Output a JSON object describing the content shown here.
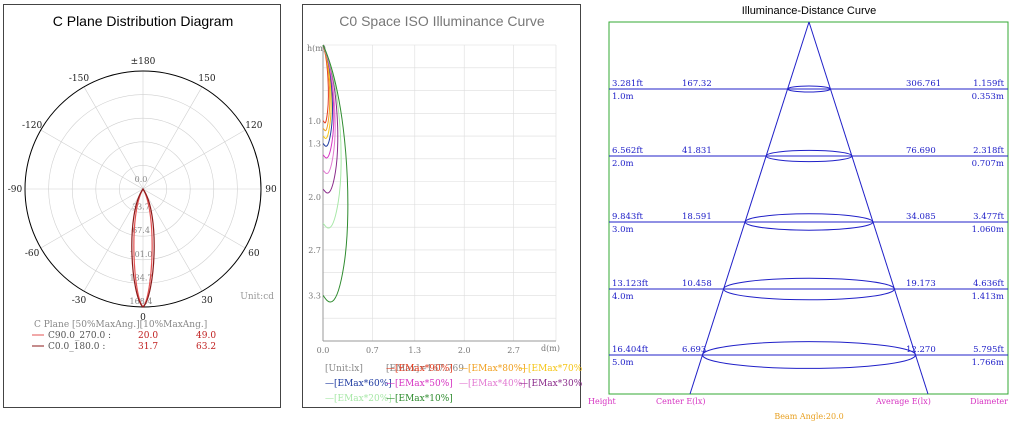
{
  "polar": {
    "title": "C Plane Distribution Diagram",
    "unit_label": "Unit:cd",
    "angle_labels": [
      "±180",
      "150",
      "120",
      "90",
      "60",
      "30",
      "0",
      "-30",
      "-60",
      "-90",
      "-120",
      "-150"
    ],
    "radial_labels": [
      "0.0",
      "33.7",
      "67.4",
      "101.0",
      "134.7",
      "168.4"
    ],
    "legend_header": "C Plane   [50%MaxAng.][10%MaxAng.]",
    "legend_rows": [
      {
        "name": "C90.0_270.0 :",
        "v50": "20.0",
        "v10": "49.0",
        "color": "#e35353"
      },
      {
        "name": "C0.0_180.0 :",
        "v50": "31.7",
        "v10": "63.2",
        "color": "#8b1a1a"
      }
    ]
  },
  "iso": {
    "title": "C0 Space ISO Illuminance Curve",
    "y_axis_label": "h(m)",
    "x_axis_label": "d(m)",
    "y_ticks": [
      "1.0",
      "1.3",
      "2.0",
      "2.7",
      "3.3"
    ],
    "x_ticks": [
      "0.0",
      "0.7",
      "1.3",
      "2.0",
      "2.7"
    ],
    "unit": "[Unit:lx]",
    "emax": "[EMax]=167.769",
    "legend": [
      {
        "label": "[EMax*90%]",
        "color": "#e33b1e"
      },
      {
        "label": "[EMax*80%]",
        "color": "#f0a020"
      },
      {
        "label": "[EMax*70%]",
        "color": "#f5c518"
      },
      {
        "label": "[EMax*60%]",
        "color": "#1e3aa0"
      },
      {
        "label": "[EMax*50%]",
        "color": "#d633c2"
      },
      {
        "label": "[EMax*40%]",
        "color": "#e27ad2"
      },
      {
        "label": "[EMax*30%]",
        "color": "#8a2a8a"
      },
      {
        "label": "[EMax*20%]",
        "color": "#a8e8a8"
      },
      {
        "label": "[EMax*10%]",
        "color": "#2e8b2e"
      }
    ]
  },
  "distance": {
    "title": "Illuminance-Distance Curve",
    "rows": [
      {
        "ft": "3.281ft",
        "m": "1.0m",
        "center": "167.32",
        "avg": "306.761",
        "dia_ft": "1.159ft",
        "dia_m": "0.353m"
      },
      {
        "ft": "6.562ft",
        "m": "2.0m",
        "center": "41.831",
        "avg": "76.690",
        "dia_ft": "2.318ft",
        "dia_m": "0.707m"
      },
      {
        "ft": "9.843ft",
        "m": "3.0m",
        "center": "18.591",
        "avg": "34.085",
        "dia_ft": "3.477ft",
        "dia_m": "1.060m"
      },
      {
        "ft": "13.123ft",
        "m": "4.0m",
        "center": "10.458",
        "avg": "19.173",
        "dia_ft": "4.636ft",
        "dia_m": "1.413m"
      },
      {
        "ft": "16.404ft",
        "m": "5.0m",
        "center": "6.693",
        "avg": "12.270",
        "dia_ft": "5.795ft",
        "dia_m": "1.766m"
      }
    ],
    "footer": {
      "height": "Height",
      "center": "Center E(lx)",
      "average": "Average E(lx)",
      "diameter": "Diameter"
    },
    "beam_angle": "Beam Angle:20.0"
  },
  "chart_data": [
    {
      "type": "polar",
      "title": "C Plane Distribution Diagram",
      "unit": "cd",
      "radial_max": 168.4,
      "radial_ticks": [
        0.0,
        33.7,
        67.4,
        101.0,
        134.7,
        168.4
      ],
      "series": [
        {
          "name": "C90.0_270.0",
          "beam_half_angle_50": 20.0,
          "beam_half_angle_10": 49.0,
          "peak": 168.4
        },
        {
          "name": "C0.0_180.0",
          "beam_half_angle_50": 31.7,
          "beam_half_angle_10": 63.2,
          "peak": 168.4
        }
      ]
    },
    {
      "type": "line",
      "title": "C0 Space ISO Illuminance Curve",
      "xlabel": "d(m)",
      "ylabel": "h(m)",
      "x_ticks": [
        0.0,
        0.7,
        1.3,
        2.0,
        2.7
      ],
      "y_ticks": [
        1.0,
        1.3,
        2.0,
        2.7,
        3.3
      ],
      "emax": 167.769,
      "series": [
        {
          "name": "[EMax*90%]",
          "x": [
            0,
            0.04,
            0.08,
            0.04,
            0
          ],
          "y": [
            0,
            0.3,
            0.6,
            0.9,
            1.0
          ]
        },
        {
          "name": "[EMax*80%]",
          "x": [
            0,
            0.05,
            0.1,
            0.05,
            0
          ],
          "y": [
            0,
            0.35,
            0.7,
            1.0,
            1.1
          ]
        },
        {
          "name": "[EMax*70%]",
          "x": [
            0,
            0.06,
            0.12,
            0.06,
            0
          ],
          "y": [
            0,
            0.4,
            0.8,
            1.1,
            1.2
          ]
        },
        {
          "name": "[EMax*60%]",
          "x": [
            0,
            0.07,
            0.14,
            0.07,
            0
          ],
          "y": [
            0,
            0.45,
            0.9,
            1.2,
            1.3
          ]
        },
        {
          "name": "[EMax*50%]",
          "x": [
            0,
            0.08,
            0.16,
            0.09,
            0
          ],
          "y": [
            0,
            0.5,
            1.0,
            1.35,
            1.45
          ]
        },
        {
          "name": "[EMax*40%]",
          "x": [
            0,
            0.09,
            0.18,
            0.1,
            0
          ],
          "y": [
            0,
            0.55,
            1.1,
            1.5,
            1.65
          ]
        },
        {
          "name": "[EMax*30%]",
          "x": [
            0,
            0.11,
            0.22,
            0.12,
            0
          ],
          "y": [
            0,
            0.65,
            1.3,
            1.75,
            1.9
          ]
        },
        {
          "name": "[EMax*20%]",
          "x": [
            0,
            0.13,
            0.27,
            0.15,
            0
          ],
          "y": [
            0,
            0.8,
            1.6,
            2.15,
            2.35
          ]
        },
        {
          "name": "[EMax*10%]",
          "x": [
            0,
            0.19,
            0.37,
            0.22,
            0
          ],
          "y": [
            0,
            1.1,
            2.2,
            3.0,
            3.3
          ]
        }
      ]
    },
    {
      "type": "table",
      "title": "Illuminance-Distance Curve",
      "beam_angle": 20.0,
      "columns": [
        "Height (m)",
        "Center E(lx)",
        "Average E(lx)",
        "Diameter (m)"
      ],
      "rows": [
        [
          1.0,
          167.32,
          306.761,
          0.353
        ],
        [
          2.0,
          41.831,
          76.69,
          0.707
        ],
        [
          3.0,
          18.591,
          34.085,
          1.06
        ],
        [
          4.0,
          10.458,
          19.173,
          1.413
        ],
        [
          5.0,
          6.693,
          12.27,
          1.766
        ]
      ]
    }
  ]
}
